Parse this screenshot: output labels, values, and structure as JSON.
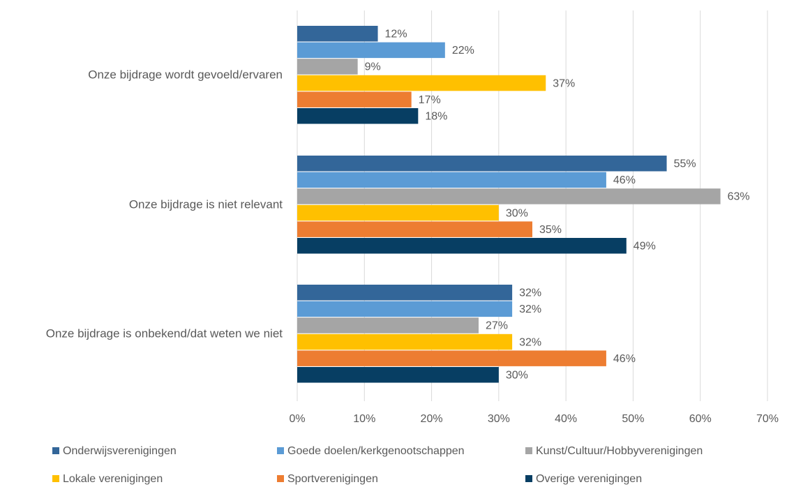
{
  "chart_data": {
    "type": "barh",
    "categories": [
      "Onze bijdrage wordt gevoeld/ervaren",
      "Onze bijdrage is niet relevant",
      "Onze bijdrage is onbekend/dat weten we niet"
    ],
    "series": [
      {
        "name": "Onderwijsverenigingen",
        "color": "#336699",
        "values": [
          12,
          55,
          32
        ],
        "value_labels": [
          "12%",
          "55%",
          "32%"
        ]
      },
      {
        "name": "Goede doelen/kerkgenootschappen",
        "color": "#5b9bd5",
        "values": [
          22,
          46,
          32
        ],
        "value_labels": [
          "22%",
          "46%",
          "32%"
        ]
      },
      {
        "name": "Kunst/Cultuur/Hobbyverenigingen",
        "color": "#a5a5a5",
        "values": [
          9,
          63,
          27
        ],
        "value_labels": [
          "9%",
          "63%",
          "27%"
        ]
      },
      {
        "name": "Lokale verenigingen",
        "color": "#ffc000",
        "values": [
          37,
          30,
          32
        ],
        "value_labels": [
          "37%",
          "30%",
          "32%"
        ]
      },
      {
        "name": "Sportverenigingen",
        "color": "#ed7d31",
        "values": [
          17,
          35,
          46
        ],
        "value_labels": [
          "17%",
          "35%",
          "46%"
        ]
      },
      {
        "name": "Overige verenigingen",
        "color": "#073e63",
        "values": [
          18,
          49,
          30
        ],
        "value_labels": [
          "18%",
          "49%",
          "30%"
        ]
      }
    ],
    "xlim": [
      0,
      70
    ],
    "xticks": [
      {
        "value": 0,
        "label": "0%"
      },
      {
        "value": 10,
        "label": "10%"
      },
      {
        "value": 20,
        "label": "20%"
      },
      {
        "value": 30,
        "label": "30%"
      },
      {
        "value": 40,
        "label": "40%"
      },
      {
        "value": 50,
        "label": "50%"
      },
      {
        "value": 60,
        "label": "60%"
      },
      {
        "value": 70,
        "label": "70%"
      }
    ],
    "grid": true,
    "legend": "bottom"
  }
}
